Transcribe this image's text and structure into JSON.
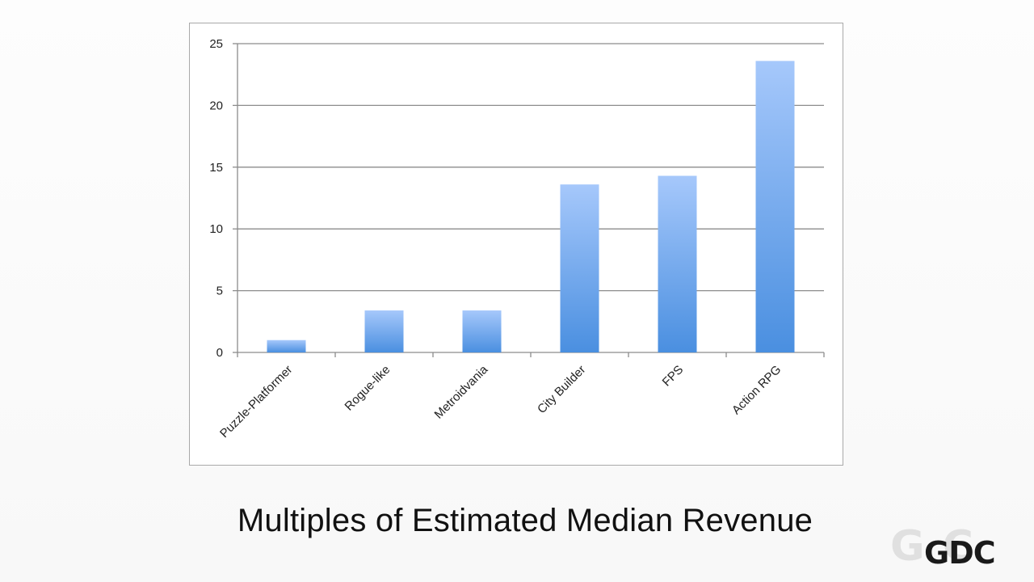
{
  "slide": {
    "caption": "Multiples of Estimated Median Revenue",
    "logo_text": "GDC"
  },
  "colors": {
    "bar_top": "#a6c8fb",
    "bar_bottom": "#4a8fe0",
    "grid": "#8c8c8c",
    "axis": "#8c8c8c"
  },
  "chart_data": {
    "type": "bar",
    "title": "",
    "xlabel": "",
    "ylabel": "",
    "categories": [
      "Puzzle-Platformer",
      "Rogue-like",
      "Metroidvania",
      "City Builder",
      "FPS",
      "Action RPG"
    ],
    "values": [
      1,
      3.4,
      3.4,
      13.6,
      14.3,
      23.6
    ],
    "ylim": [
      0,
      25
    ],
    "yticks": [
      0,
      5,
      10,
      15,
      20,
      25
    ],
    "grid": true,
    "legend": "none"
  }
}
